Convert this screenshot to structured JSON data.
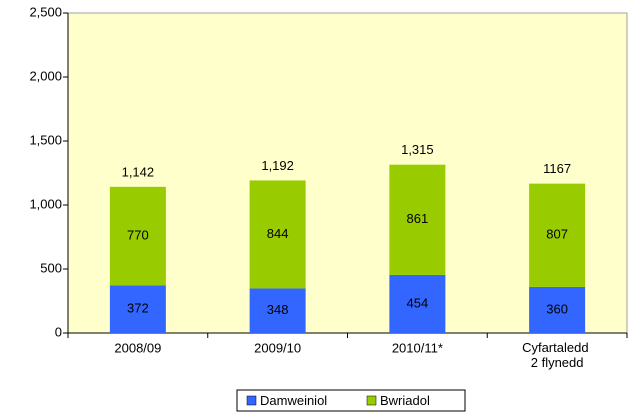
{
  "chart_data": {
    "type": "stacked-bar",
    "categories": [
      "2008/09",
      "2009/10",
      "2010/11*",
      "Cyfartaledd 2 flynedd"
    ],
    "series": [
      {
        "name": "Damweiniol",
        "color": "#3366ff",
        "values": [
          372,
          348,
          454,
          360
        ]
      },
      {
        "name": "Bwriadol",
        "color": "#99cc00",
        "values": [
          770,
          844,
          861,
          807
        ]
      }
    ],
    "totals": [
      1142,
      1192,
      1315,
      1167
    ],
    "total_labels": [
      "1,142",
      "1,192",
      "1,315",
      "1167"
    ],
    "ylim": [
      0,
      2500
    ],
    "yticks": [
      0,
      500,
      {
        "value": 1000,
        "label": "1,000"
      },
      {
        "value": 1500,
        "label": "1,500"
      },
      {
        "value": 2000,
        "label": "2,000"
      },
      {
        "value": 2500,
        "label": "2,500"
      }
    ],
    "plot_background": "#ffffcc",
    "legend": "bottom"
  }
}
